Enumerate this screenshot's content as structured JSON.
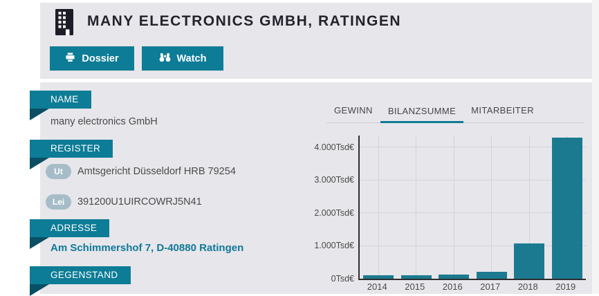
{
  "colors": {
    "accent": "#0d7c96",
    "accent_dark": "#0a4f63",
    "bar": "#1b7a8f",
    "panel": "#e7e6ea",
    "grid": "#d3d3d9",
    "axis": "#2e2e2e",
    "badge": "#a6bdc8",
    "text": "#4a4a4a",
    "title": "#23232d",
    "tab_border": "#cfcfd4",
    "link": "#10789a"
  },
  "header": {
    "title": "MANY ELECTRONICS GMBH, RATINGEN",
    "dossier_label": "Dossier",
    "watch_label": "Watch"
  },
  "sections": {
    "name": {
      "label": "NAME",
      "value": "many electronics GmbH"
    },
    "register": {
      "label": "REGISTER",
      "entries": [
        {
          "badge": "Ut",
          "value": "Amtsgericht Düsseldorf HRB 79254"
        },
        {
          "badge": "Lei",
          "value": "391200U1UIRCOWRJ5N41"
        }
      ]
    },
    "adresse": {
      "label": "ADRESSE",
      "value": "Am Schimmershof 7, D-40880 Ratingen"
    },
    "gegenstand": {
      "label": "GEGENSTAND"
    }
  },
  "tabs": [
    {
      "label": "GEWINN",
      "active": false
    },
    {
      "label": "BILANZSUMME",
      "active": true
    },
    {
      "label": "MITARBEITER",
      "active": false
    }
  ],
  "chart_data": {
    "type": "bar",
    "title": "BILANZSUMME",
    "categories": [
      "2014",
      "2015",
      "2016",
      "2017",
      "2018",
      "2019"
    ],
    "values": [
      110,
      100,
      120,
      210,
      1080,
      4300
    ],
    "unit": "Tsd€",
    "xlabel": "",
    "ylabel": "",
    "ylim": [
      0,
      4360
    ],
    "yticks": [
      0,
      1000,
      2000,
      3000,
      4000
    ],
    "ytick_labels": [
      "0Tsd€",
      "1.000Tsd€",
      "2.000Tsd€",
      "3.000Tsd€",
      "4.000Tsd€"
    ],
    "grid": true,
    "legend": false
  }
}
